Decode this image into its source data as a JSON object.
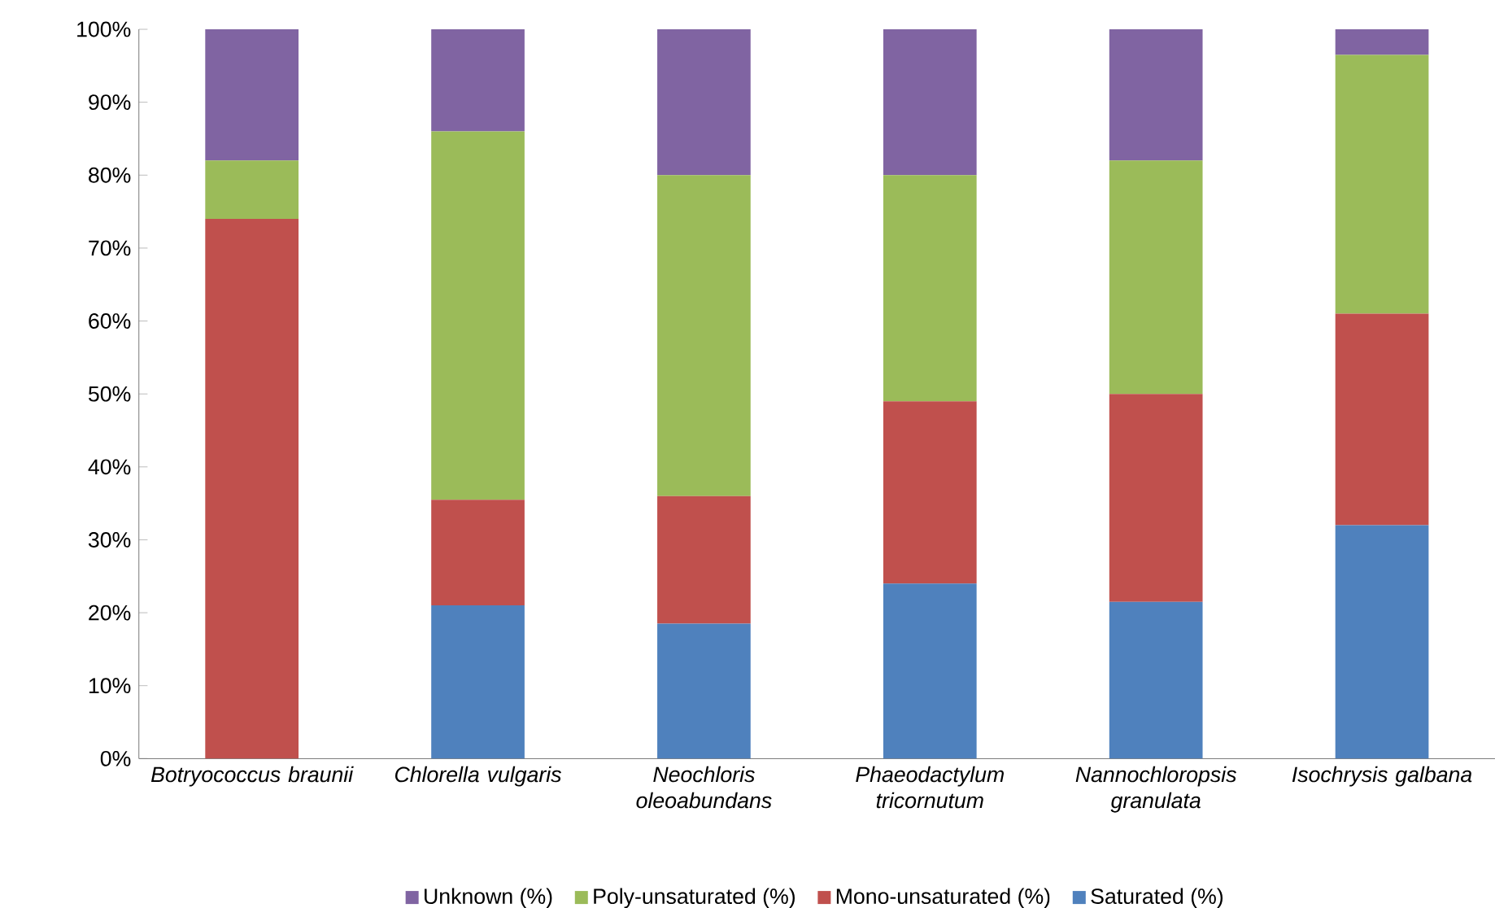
{
  "chart_data": {
    "type": "bar",
    "stacked": true,
    "legend": "bottom",
    "categories": [
      "Botryococcus braunii",
      "Chlorella vulgaris",
      "Neochloris oleoabundans",
      "Phaeodactylum tricornutum",
      "Nannochloropsis granulata",
      "Isochrysis galbana"
    ],
    "series": [
      {
        "name": "Saturated (%)",
        "color": "#4f81bd",
        "values": [
          0,
          21,
          18.5,
          24,
          21.5,
          32
        ]
      },
      {
        "name": "Mono-unsaturated (%)",
        "color": "#c0504d",
        "values": [
          74,
          14.5,
          17.5,
          25,
          28.5,
          29
        ]
      },
      {
        "name": "Poly-unsaturated (%)",
        "color": "#9bbb59",
        "values": [
          8,
          50.5,
          44,
          31,
          32,
          35.5
        ]
      },
      {
        "name": "Unknown (%)",
        "color": "#8064a2",
        "values": [
          18,
          14,
          20,
          20,
          18,
          3.5
        ]
      }
    ],
    "ylim": [
      0,
      100
    ],
    "yticks": [
      {
        "value": 0,
        "label": "0%"
      },
      {
        "value": 10,
        "label": "10%"
      },
      {
        "value": 20,
        "label": "20%"
      },
      {
        "value": 30,
        "label": "30%"
      },
      {
        "value": 40,
        "label": "40%"
      },
      {
        "value": 50,
        "label": "50%"
      },
      {
        "value": 60,
        "label": "60%"
      },
      {
        "value": 70,
        "label": "70%"
      },
      {
        "value": 80,
        "label": "80%"
      },
      {
        "value": 90,
        "label": "90%"
      },
      {
        "value": 100,
        "label": "100%"
      }
    ]
  }
}
